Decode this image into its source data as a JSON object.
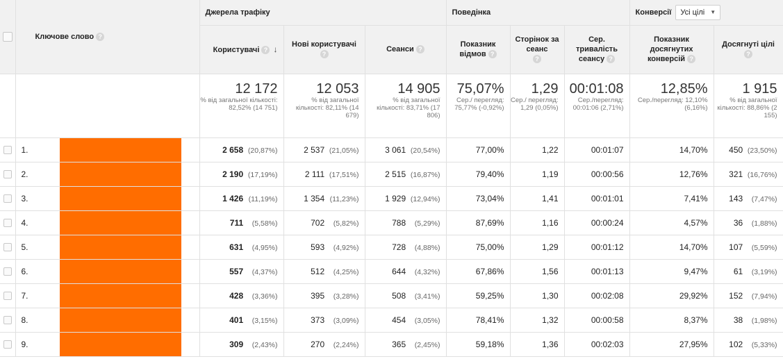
{
  "colors": {
    "redaction": "#ff6d00",
    "header_bg": "#f1f1f1"
  },
  "groups": {
    "traffic": "Джерела трафіку",
    "behavior": "Поведінка",
    "conversions": "Конверсії",
    "goal_select": "Усі цілі"
  },
  "columns": {
    "keyword": "Ключове слово",
    "users": "Користувачі",
    "new_users": "Нові користувачі",
    "sessions": "Сеанси",
    "bounce": "Показник відмов",
    "pages": "Сторінок за сеанс",
    "duration": "Сер. тривалість сеансу",
    "conv_rate": "Показник досягнутих конверсій",
    "goals": "Досягнуті цілі"
  },
  "icons": {
    "help": "?",
    "sort": "↓",
    "caret": "▼"
  },
  "totals": {
    "users": {
      "big": "12 172",
      "sub": "% від загальної кількості: 82,52% (14 751)"
    },
    "new_users": {
      "big": "12 053",
      "sub": "% від загальної кількості: 82,11% (14 679)"
    },
    "sessions": {
      "big": "14 905",
      "sub": "% від загальної кількості: 83,71% (17 806)"
    },
    "bounce": {
      "big": "75,07%",
      "sub": "Сер./ перегляд: 75,77% (-0,92%)"
    },
    "pages": {
      "big": "1,29",
      "sub": "Сер./ перегляд: 1,29 (0,05%)"
    },
    "duration": {
      "big": "00:01:08",
      "sub": "Сер./перегляд: 00:01:06 (2,71%)"
    },
    "conv_rate": {
      "big": "12,85%",
      "sub": "Сер./перегляд: 12,10% (6,16%)"
    },
    "goals": {
      "big": "1 915",
      "sub": "% від загальної кількості: 88,86% (2 155)"
    }
  },
  "rows": [
    {
      "n": "1.",
      "users": "2 658",
      "users_pct": "(20,87%)",
      "new": "2 537",
      "new_pct": "(21,05%)",
      "sess": "3 061",
      "sess_pct": "(20,54%)",
      "bounce": "77,00%",
      "pages": "1,22",
      "dur": "00:01:07",
      "conv": "14,70%",
      "goals": "450",
      "goals_pct": "(23,50%)"
    },
    {
      "n": "2.",
      "users": "2 190",
      "users_pct": "(17,19%)",
      "new": "2 111",
      "new_pct": "(17,51%)",
      "sess": "2 515",
      "sess_pct": "(16,87%)",
      "bounce": "79,40%",
      "pages": "1,19",
      "dur": "00:00:56",
      "conv": "12,76%",
      "goals": "321",
      "goals_pct": "(16,76%)"
    },
    {
      "n": "3.",
      "users": "1 426",
      "users_pct": "(11,19%)",
      "new": "1 354",
      "new_pct": "(11,23%)",
      "sess": "1 929",
      "sess_pct": "(12,94%)",
      "bounce": "73,04%",
      "pages": "1,41",
      "dur": "00:01:01",
      "conv": "7,41%",
      "goals": "143",
      "goals_pct": "(7,47%)"
    },
    {
      "n": "4.",
      "users": "711",
      "users_pct": "(5,58%)",
      "new": "702",
      "new_pct": "(5,82%)",
      "sess": "788",
      "sess_pct": "(5,29%)",
      "bounce": "87,69%",
      "pages": "1,16",
      "dur": "00:00:24",
      "conv": "4,57%",
      "goals": "36",
      "goals_pct": "(1,88%)"
    },
    {
      "n": "5.",
      "users": "631",
      "users_pct": "(4,95%)",
      "new": "593",
      "new_pct": "(4,92%)",
      "sess": "728",
      "sess_pct": "(4,88%)",
      "bounce": "75,00%",
      "pages": "1,29",
      "dur": "00:01:12",
      "conv": "14,70%",
      "goals": "107",
      "goals_pct": "(5,59%)"
    },
    {
      "n": "6.",
      "users": "557",
      "users_pct": "(4,37%)",
      "new": "512",
      "new_pct": "(4,25%)",
      "sess": "644",
      "sess_pct": "(4,32%)",
      "bounce": "67,86%",
      "pages": "1,56",
      "dur": "00:01:13",
      "conv": "9,47%",
      "goals": "61",
      "goals_pct": "(3,19%)"
    },
    {
      "n": "7.",
      "users": "428",
      "users_pct": "(3,36%)",
      "new": "395",
      "new_pct": "(3,28%)",
      "sess": "508",
      "sess_pct": "(3,41%)",
      "bounce": "59,25%",
      "pages": "1,30",
      "dur": "00:02:08",
      "conv": "29,92%",
      "goals": "152",
      "goals_pct": "(7,94%)"
    },
    {
      "n": "8.",
      "users": "401",
      "users_pct": "(3,15%)",
      "new": "373",
      "new_pct": "(3,09%)",
      "sess": "454",
      "sess_pct": "(3,05%)",
      "bounce": "78,41%",
      "pages": "1,32",
      "dur": "00:00:58",
      "conv": "8,37%",
      "goals": "38",
      "goals_pct": "(1,98%)"
    },
    {
      "n": "9.",
      "users": "309",
      "users_pct": "(2,43%)",
      "new": "270",
      "new_pct": "(2,24%)",
      "sess": "365",
      "sess_pct": "(2,45%)",
      "bounce": "59,18%",
      "pages": "1,36",
      "dur": "00:02:03",
      "conv": "27,95%",
      "goals": "102",
      "goals_pct": "(5,33%)"
    }
  ]
}
